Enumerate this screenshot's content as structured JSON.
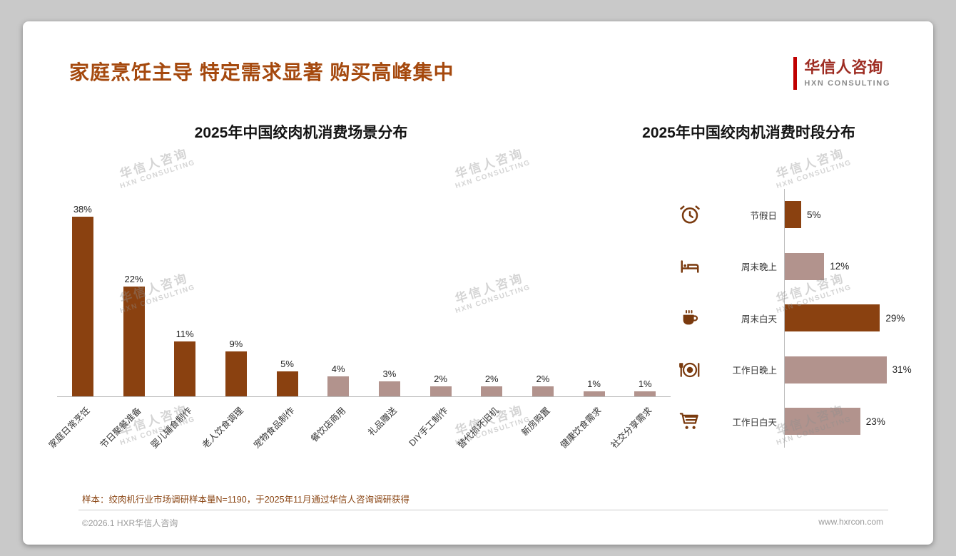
{
  "page": {
    "title": "家庭烹饪主导 特定需求显著 购买高峰集中",
    "logo": {
      "cn": "华信人咨询",
      "en": "HXN CONSULTING"
    },
    "note": "样本：绞肉机行业市场调研样本量N=1190，于2025年11月通过华信人咨询调研获得",
    "footer_left": "©2026.1 HXR华信人咨询",
    "footer_right": "www.hxrcon.com",
    "watermark": {
      "cn": "华信人咨询",
      "en": "HXN CONSULTING"
    }
  },
  "colors": {
    "dark": "#8a4110",
    "light": "#b2938d",
    "accent_red": "#c00000",
    "title_brown": "#a5490e"
  },
  "chart_data": [
    {
      "type": "bar",
      "title": "2025年中国绞肉机消费场景分布",
      "categories": [
        "家庭日常烹饪",
        "节日聚餐准备",
        "婴儿辅食制作",
        "老人饮食调理",
        "宠物食品制作",
        "餐饮店商用",
        "礼品赠送",
        "DIY手工制作",
        "替代损坏旧机",
        "新房购置",
        "健康饮食需求",
        "社交分享需求"
      ],
      "values": [
        38,
        22,
        11,
        9,
        5,
        4,
        3,
        2,
        2,
        2,
        1,
        1
      ],
      "colors": [
        "dark",
        "dark",
        "dark",
        "dark",
        "dark",
        "light",
        "light",
        "light",
        "light",
        "light",
        "light",
        "light"
      ],
      "unit": "%",
      "ylim": [
        0,
        40
      ],
      "grid": false,
      "legend": "none"
    },
    {
      "type": "bar-horizontal",
      "title": "2025年中国绞肉机消费时段分布",
      "categories": [
        "节假日",
        "周末晚上",
        "周末白天",
        "工作日晚上",
        "工作日白天"
      ],
      "values": [
        5,
        12,
        29,
        31,
        23
      ],
      "colors": [
        "dark",
        "light",
        "dark",
        "light",
        "light"
      ],
      "icons": [
        "alarm-clock",
        "bed",
        "coffee-cup",
        "dining",
        "shopping-cart"
      ],
      "unit": "%",
      "xlim": [
        0,
        35
      ],
      "grid": false,
      "legend": "none"
    }
  ]
}
